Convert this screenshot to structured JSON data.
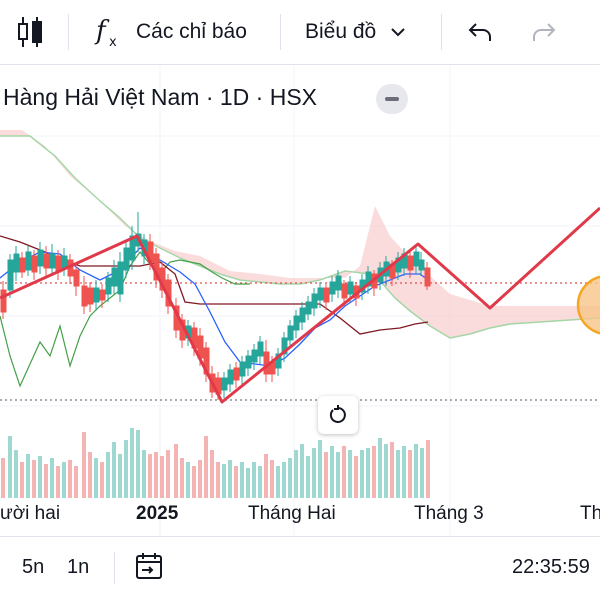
{
  "toolbar": {
    "indicators_label": "Các chỉ báo",
    "chart_type_label": "Biểu đồ"
  },
  "symbol": {
    "title": "Hàng Hải Việt Nam · 1D · HSX"
  },
  "time_axis": {
    "labels": [
      "ười hai",
      "2025",
      "Tháng Hai",
      "Tháng 3",
      "Th"
    ]
  },
  "bottom": {
    "range_5d": "5n",
    "range_1y": "1n",
    "clock": "22:35:59"
  },
  "colors": {
    "up": "#26a69a",
    "down": "#ef5350",
    "cloud": "#f8d0d0",
    "zigzag": "#e0394a",
    "tenkan": "#2962ff",
    "kijun": "#801922",
    "span_b_line": "#a5d6a7",
    "lagging": "#43a047",
    "highlight": "#f5a623"
  },
  "icons": {
    "candles": "candlestick-icon",
    "indicators": "fx-icon",
    "dropdown": "chevron-down-icon",
    "undo": "undo-icon",
    "redo": "redo-icon",
    "reset": "reset-icon",
    "calendar": "calendar-goto-icon"
  }
}
